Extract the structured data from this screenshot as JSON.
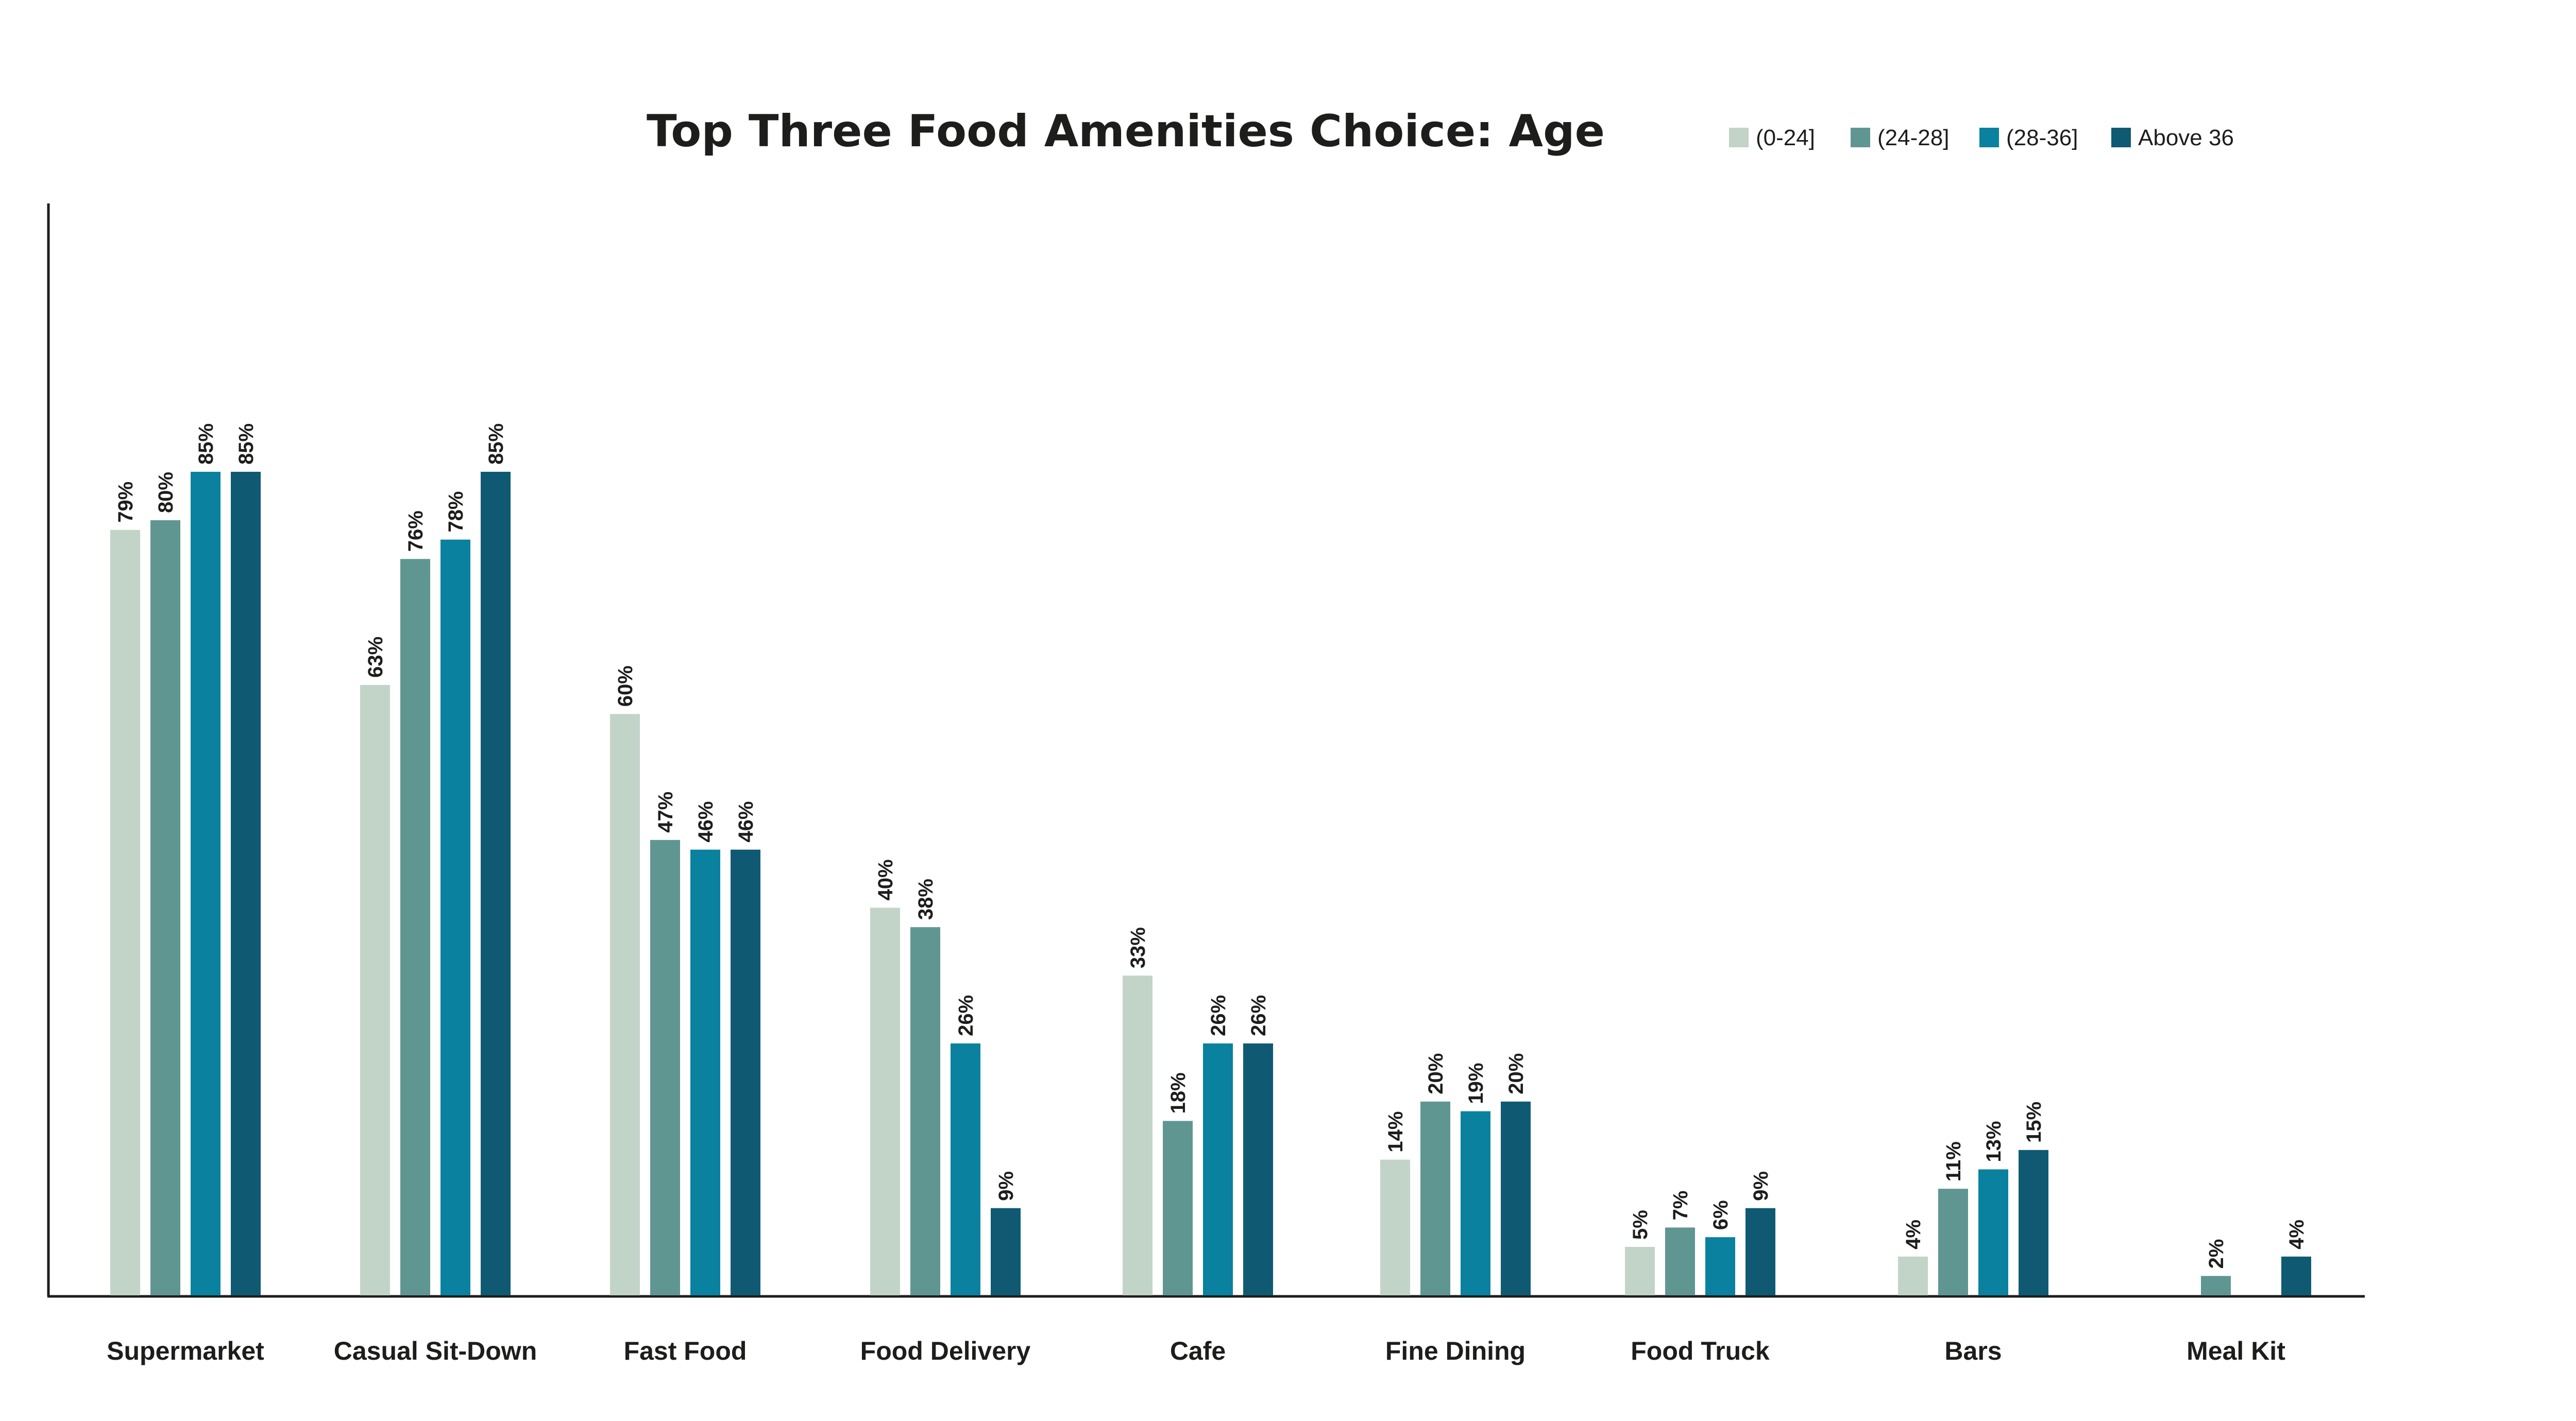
{
  "chart_data": {
    "type": "bar",
    "title": "Top Three Food Amenities Choice: Age",
    "xlabel": "",
    "ylabel": "",
    "ylim": [
      0,
      100
    ],
    "grid": false,
    "legend_position": "top-right",
    "categories": [
      "Supermarket",
      "Casual Sit-Down",
      "Fast Food",
      "Food Delivery",
      "Cafe",
      "Fine Dining",
      "Food Truck",
      "Bars",
      "Meal Kit"
    ],
    "series": [
      {
        "name": "(0-24]",
        "color": "#c2d4c8",
        "values": [
          79,
          63,
          60,
          40,
          33,
          14,
          5,
          4,
          null
        ],
        "labels": [
          "79%",
          "63%",
          "60%",
          "40%",
          "33%",
          "14%",
          "5%",
          "4%",
          ""
        ]
      },
      {
        "name": "(24-28]",
        "color": "#5f9692",
        "values": [
          80,
          76,
          47,
          38,
          18,
          20,
          7,
          11,
          2
        ],
        "labels": [
          "80%",
          "76%",
          "47%",
          "38%",
          "18%",
          "20%",
          "7%",
          "11%",
          "2%"
        ]
      },
      {
        "name": "(28-36]",
        "color": "#0a819f",
        "values": [
          85,
          78,
          46,
          26,
          26,
          19,
          6,
          13,
          null
        ],
        "labels": [
          "85%",
          "78%",
          "46%",
          "26%",
          "26%",
          "19%",
          "6%",
          "13%",
          ""
        ]
      },
      {
        "name": "Above 36",
        "color": "#0f5a72",
        "values": [
          85,
          85,
          46,
          9,
          26,
          20,
          9,
          15,
          4
        ],
        "labels": [
          "85%",
          "85%",
          "46%",
          "9%",
          "26%",
          "20%",
          "9%",
          "15%",
          "4%"
        ]
      }
    ]
  }
}
